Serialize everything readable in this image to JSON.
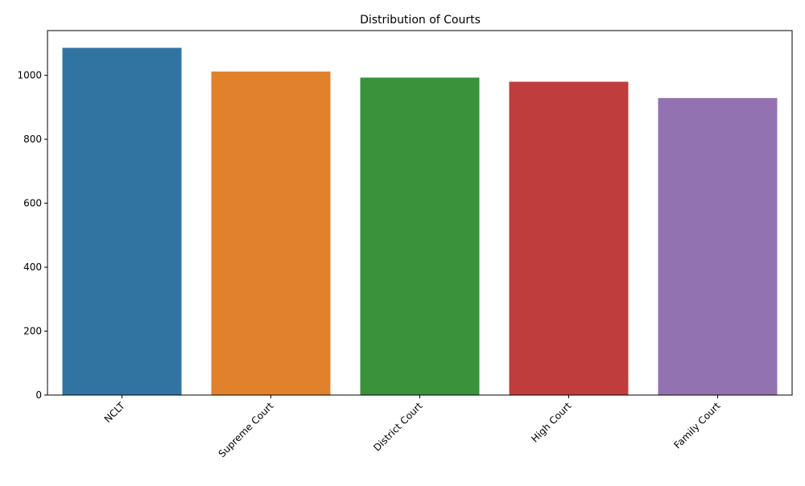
{
  "chart_data": {
    "type": "bar",
    "title": "Distribution of Courts",
    "xlabel": "",
    "ylabel": "",
    "categories": [
      "NCLT",
      "Supreme Court",
      "District Court",
      "High Court",
      "Family Court"
    ],
    "values": [
      1086,
      1012,
      993,
      980,
      929
    ],
    "colors": [
      "#3274a1",
      "#e1812c",
      "#3a923a",
      "#c03d3e",
      "#9372b2"
    ],
    "ylim": [
      0,
      1140
    ],
    "yticks": [
      0,
      200,
      400,
      600,
      800,
      1000
    ],
    "grid": false,
    "legend": "none",
    "xtick_rotation": 45
  }
}
